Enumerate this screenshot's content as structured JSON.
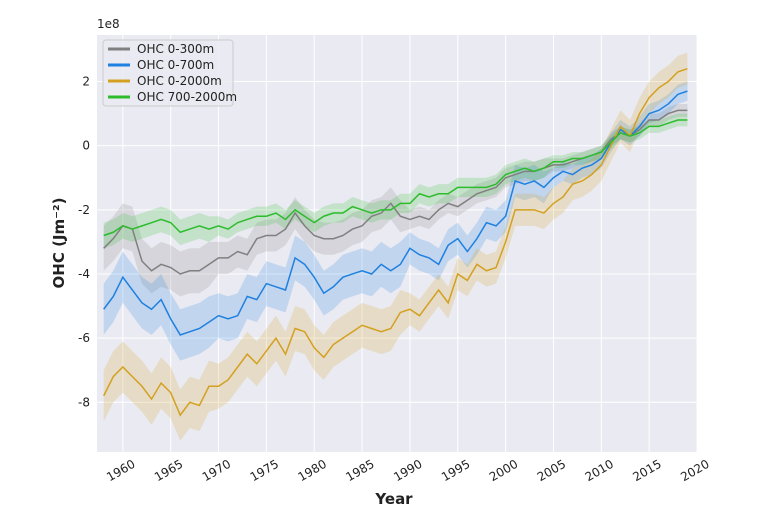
{
  "chart_data": {
    "type": "line",
    "ylabel": "OHC (Jm⁻²)",
    "xlabel": "Year",
    "offset_text": "1e8",
    "x": [
      1958,
      1959,
      1960,
      1961,
      1962,
      1963,
      1964,
      1965,
      1966,
      1967,
      1968,
      1969,
      1970,
      1971,
      1972,
      1973,
      1974,
      1975,
      1976,
      1977,
      1978,
      1979,
      1980,
      1981,
      1982,
      1983,
      1984,
      1985,
      1986,
      1987,
      1988,
      1989,
      1990,
      1991,
      1992,
      1993,
      1994,
      1995,
      1996,
      1997,
      1998,
      1999,
      2000,
      2001,
      2002,
      2003,
      2004,
      2005,
      2006,
      2007,
      2008,
      2009,
      2010,
      2011,
      2012,
      2013,
      2014,
      2015,
      2016,
      2017,
      2018,
      2019
    ],
    "xlim": [
      1957.3,
      2020
    ],
    "xticks": [
      1960,
      1965,
      1970,
      1975,
      1980,
      1985,
      1990,
      1995,
      2000,
      2005,
      2010,
      2015,
      2020
    ],
    "ylim": [
      -9.55,
      3.45
    ],
    "yticks": [
      -8,
      -6,
      -4,
      -2,
      0,
      2
    ],
    "grid": true,
    "legend": "upper left",
    "series": [
      {
        "name": "OHC 0-300m",
        "color": "#808080",
        "values": [
          -3.2,
          -2.9,
          -2.5,
          -2.6,
          -3.6,
          -3.9,
          -3.7,
          -3.8,
          -4.0,
          -3.9,
          -3.9,
          -3.7,
          -3.5,
          -3.5,
          -3.3,
          -3.4,
          -2.9,
          -2.8,
          -2.8,
          -2.6,
          -2.1,
          -2.5,
          -2.8,
          -2.9,
          -2.9,
          -2.8,
          -2.6,
          -2.5,
          -2.2,
          -2.1,
          -1.8,
          -2.2,
          -2.3,
          -2.2,
          -2.3,
          -2.0,
          -1.8,
          -1.9,
          -1.7,
          -1.5,
          -1.4,
          -1.3,
          -1.0,
          -0.9,
          -0.8,
          -0.8,
          -0.7,
          -0.6,
          -0.6,
          -0.5,
          -0.4,
          -0.3,
          -0.2,
          0.2,
          0.4,
          0.3,
          0.5,
          0.8,
          0.8,
          1.0,
          1.1,
          1.1
        ],
        "errors": [
          0.7,
          0.7,
          0.7,
          0.7,
          0.7,
          0.7,
          0.7,
          0.7,
          0.7,
          0.7,
          0.7,
          0.7,
          0.5,
          0.5,
          0.5,
          0.5,
          0.5,
          0.5,
          0.5,
          0.5,
          0.5,
          0.5,
          0.5,
          0.5,
          0.5,
          0.5,
          0.5,
          0.5,
          0.5,
          0.5,
          0.5,
          0.5,
          0.3,
          0.3,
          0.3,
          0.3,
          0.3,
          0.3,
          0.3,
          0.3,
          0.3,
          0.3,
          0.3,
          0.3,
          0.3,
          0.3,
          0.3,
          0.2,
          0.2,
          0.2,
          0.2,
          0.2,
          0.2,
          0.2,
          0.2,
          0.2,
          0.2,
          0.2,
          0.2,
          0.2,
          0.2,
          0.2
        ]
      },
      {
        "name": "OHC 0-700m",
        "color": "#1e80e0",
        "values": [
          -5.1,
          -4.7,
          -4.1,
          -4.5,
          -4.9,
          -5.1,
          -4.8,
          -5.4,
          -5.9,
          -5.8,
          -5.7,
          -5.5,
          -5.3,
          -5.4,
          -5.3,
          -4.7,
          -4.8,
          -4.3,
          -4.4,
          -4.5,
          -3.5,
          -3.7,
          -4.1,
          -4.6,
          -4.4,
          -4.1,
          -4.0,
          -3.9,
          -4.0,
          -3.7,
          -3.9,
          -3.7,
          -3.2,
          -3.4,
          -3.5,
          -3.7,
          -3.1,
          -2.9,
          -3.3,
          -2.9,
          -2.4,
          -2.5,
          -2.2,
          -1.1,
          -1.2,
          -1.1,
          -1.3,
          -1.0,
          -0.8,
          -0.9,
          -0.7,
          -0.6,
          -0.4,
          0.1,
          0.5,
          0.3,
          0.6,
          1.0,
          1.1,
          1.3,
          1.6,
          1.7
        ],
        "errors": [
          0.8,
          0.8,
          0.8,
          0.8,
          0.8,
          0.8,
          0.8,
          0.8,
          0.8,
          0.8,
          0.8,
          0.8,
          0.7,
          0.7,
          0.7,
          0.7,
          0.7,
          0.7,
          0.7,
          0.7,
          0.7,
          0.7,
          0.7,
          0.7,
          0.7,
          0.7,
          0.7,
          0.7,
          0.7,
          0.7,
          0.7,
          0.7,
          0.5,
          0.5,
          0.5,
          0.5,
          0.5,
          0.5,
          0.5,
          0.5,
          0.5,
          0.5,
          0.5,
          0.5,
          0.5,
          0.5,
          0.5,
          0.3,
          0.3,
          0.3,
          0.3,
          0.3,
          0.3,
          0.3,
          0.3,
          0.3,
          0.3,
          0.3,
          0.3,
          0.3,
          0.3,
          0.3
        ]
      },
      {
        "name": "OHC 0-2000m",
        "color": "#d4a020",
        "values": [
          -7.8,
          -7.2,
          -6.9,
          -7.2,
          -7.5,
          -7.9,
          -7.4,
          -7.7,
          -8.4,
          -8.0,
          -8.1,
          -7.5,
          -7.5,
          -7.3,
          -6.9,
          -6.5,
          -6.8,
          -6.4,
          -6.0,
          -6.5,
          -5.7,
          -5.8,
          -6.3,
          -6.6,
          -6.2,
          -6.0,
          -5.8,
          -5.6,
          -5.7,
          -5.8,
          -5.7,
          -5.2,
          -5.1,
          -5.3,
          -4.9,
          -4.5,
          -4.9,
          -4.0,
          -4.2,
          -3.7,
          -3.9,
          -3.8,
          -3.0,
          -2.0,
          -2.0,
          -2.0,
          -2.1,
          -1.8,
          -1.6,
          -1.2,
          -1.1,
          -0.9,
          -0.6,
          0.0,
          0.6,
          0.3,
          1.0,
          1.5,
          1.8,
          2.0,
          2.3,
          2.4
        ],
        "errors": [
          0.8,
          0.8,
          0.8,
          0.8,
          0.8,
          0.8,
          0.8,
          0.8,
          0.8,
          0.8,
          0.8,
          0.8,
          0.7,
          0.7,
          0.7,
          0.7,
          0.7,
          0.7,
          0.7,
          0.7,
          0.7,
          0.7,
          0.7,
          0.7,
          0.7,
          0.7,
          0.7,
          0.7,
          0.7,
          0.7,
          0.7,
          0.7,
          0.5,
          0.5,
          0.5,
          0.5,
          0.5,
          0.5,
          0.5,
          0.5,
          0.5,
          0.5,
          0.5,
          0.5,
          0.5,
          0.5,
          0.5,
          0.5,
          0.5,
          0.5,
          0.5,
          0.5,
          0.5,
          0.5,
          0.5,
          0.5,
          0.5,
          0.5,
          0.5,
          0.5,
          0.5,
          0.5
        ]
      },
      {
        "name": "OHC 700-2000m",
        "color": "#2cbc2c",
        "values": [
          -2.8,
          -2.7,
          -2.5,
          -2.6,
          -2.5,
          -2.4,
          -2.3,
          -2.4,
          -2.7,
          -2.6,
          -2.5,
          -2.6,
          -2.5,
          -2.6,
          -2.4,
          -2.3,
          -2.2,
          -2.2,
          -2.1,
          -2.3,
          -2.0,
          -2.2,
          -2.4,
          -2.2,
          -2.1,
          -2.1,
          -1.9,
          -2.0,
          -2.1,
          -2.0,
          -2.0,
          -1.8,
          -1.8,
          -1.5,
          -1.6,
          -1.5,
          -1.5,
          -1.3,
          -1.3,
          -1.3,
          -1.3,
          -1.2,
          -0.9,
          -0.8,
          -0.7,
          -0.8,
          -0.7,
          -0.5,
          -0.5,
          -0.4,
          -0.4,
          -0.3,
          -0.2,
          0.1,
          0.4,
          0.3,
          0.4,
          0.6,
          0.6,
          0.7,
          0.8,
          0.8
        ],
        "errors": [
          0.4,
          0.4,
          0.4,
          0.4,
          0.4,
          0.4,
          0.4,
          0.4,
          0.4,
          0.4,
          0.4,
          0.4,
          0.3,
          0.3,
          0.3,
          0.3,
          0.3,
          0.3,
          0.3,
          0.3,
          0.3,
          0.3,
          0.3,
          0.3,
          0.3,
          0.3,
          0.3,
          0.3,
          0.3,
          0.3,
          0.3,
          0.3,
          0.3,
          0.3,
          0.3,
          0.3,
          0.3,
          0.3,
          0.3,
          0.3,
          0.3,
          0.3,
          0.3,
          0.3,
          0.3,
          0.3,
          0.3,
          0.2,
          0.2,
          0.2,
          0.2,
          0.2,
          0.2,
          0.2,
          0.2,
          0.2,
          0.2,
          0.2,
          0.2,
          0.2,
          0.2,
          0.2
        ]
      }
    ]
  }
}
